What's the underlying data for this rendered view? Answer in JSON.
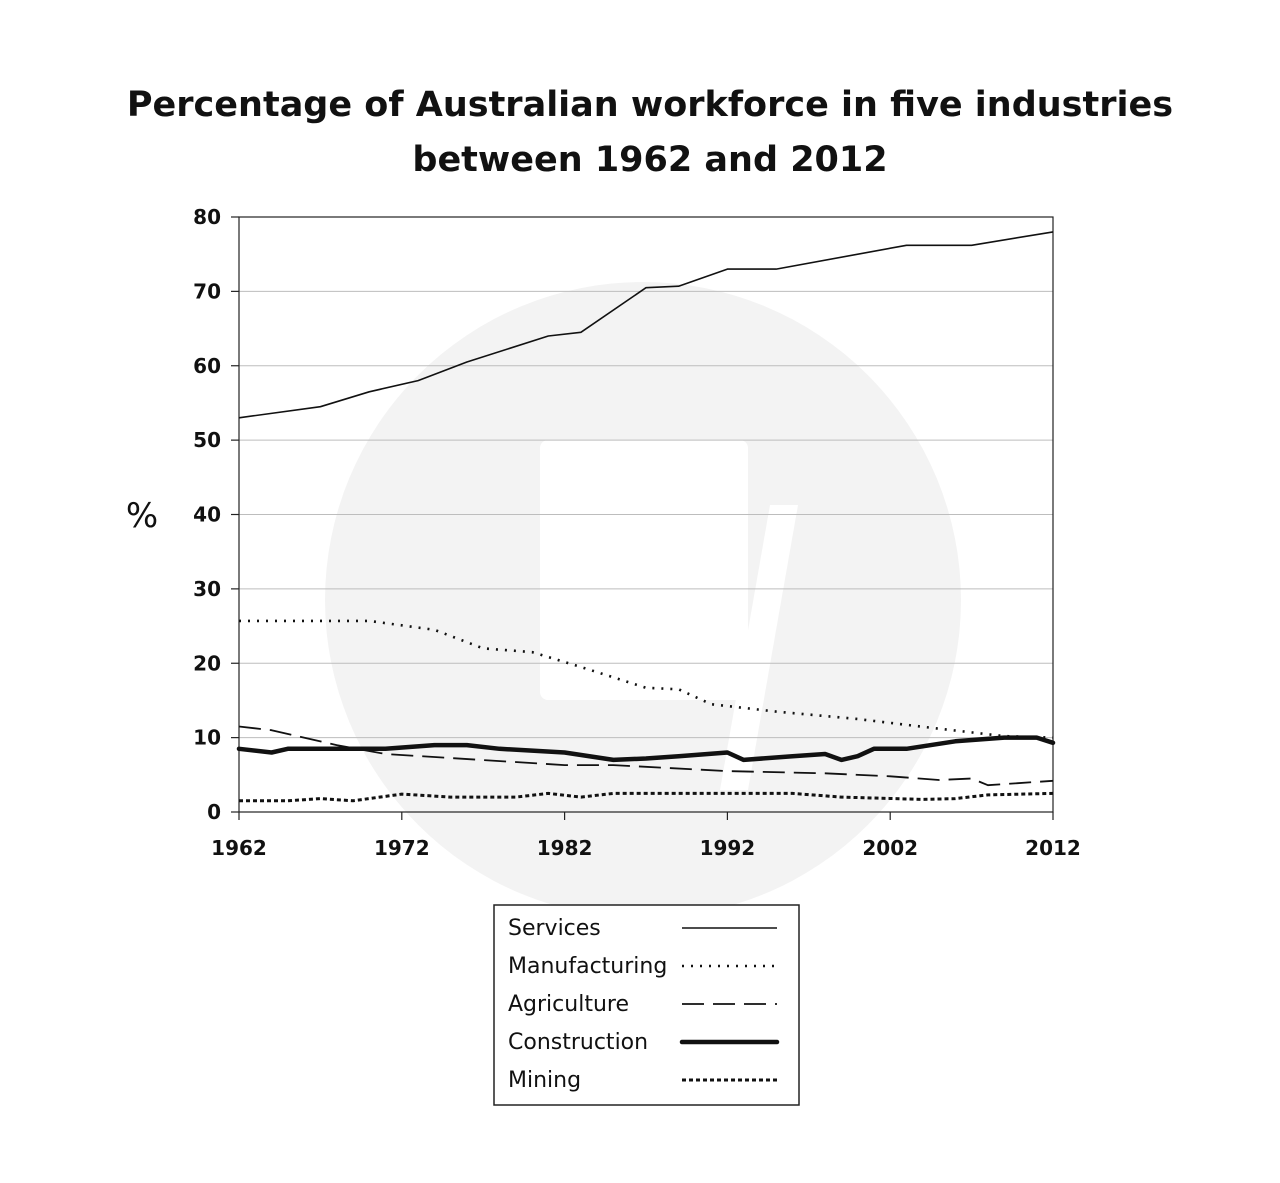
{
  "chart_data": {
    "type": "line",
    "title_lines": [
      "Percentage of Australian workforce in five industries",
      "between 1962 and 2012"
    ],
    "ylabel": "%",
    "xlabel": "",
    "xlim": [
      1962,
      2012
    ],
    "ylim": [
      0,
      80
    ],
    "x_ticks": [
      1962,
      1972,
      1982,
      1992,
      2002,
      2012
    ],
    "y_ticks": [
      0,
      10,
      20,
      30,
      40,
      50,
      60,
      70,
      80
    ],
    "grid": "horizontal",
    "legend_position": "bottom-center",
    "series": [
      {
        "name": "Services",
        "style": "solid",
        "x": [
          1962,
          1967,
          1970,
          1973,
          1976,
          1981,
          1983,
          1987,
          1989,
          1992,
          1995,
          2003,
          2007,
          2012
        ],
        "y": [
          53,
          54.5,
          56.5,
          58,
          60.5,
          64,
          64.5,
          70.5,
          70.7,
          73,
          73,
          76.2,
          76.2,
          78
        ]
      },
      {
        "name": "Manufacturing",
        "style": "dotted",
        "x": [
          1962,
          1970,
          1974,
          1977,
          1980,
          1983,
          1987,
          1989,
          1991,
          1995,
          2000,
          2005,
          2009,
          2012
        ],
        "y": [
          25.7,
          25.7,
          24.5,
          22,
          21.5,
          19.5,
          16.7,
          16.5,
          14.5,
          13.5,
          12.5,
          11.2,
          10.2,
          10
        ]
      },
      {
        "name": "Agriculture",
        "style": "dashed",
        "x": [
          1962,
          1964,
          1968,
          1971,
          1982,
          1985,
          1992,
          1998,
          2002,
          2005,
          2007,
          2008,
          2012
        ],
        "y": [
          11.5,
          11,
          9,
          7.8,
          6.3,
          6.3,
          5.5,
          5.2,
          4.8,
          4.3,
          4.5,
          3.6,
          4.2
        ]
      },
      {
        "name": "Construction",
        "style": "thick",
        "x": [
          1962,
          1964,
          1965,
          1971,
          1974,
          1976,
          1978,
          1982,
          1985,
          1987,
          1989,
          1992,
          1993,
          1996,
          1998,
          1999,
          2000,
          2001,
          2003,
          2006,
          2009,
          2011,
          2012
        ],
        "y": [
          8.5,
          8,
          8.5,
          8.5,
          9,
          9,
          8.5,
          8,
          7,
          7.2,
          7.5,
          8,
          7,
          7.5,
          7.8,
          7,
          7.5,
          8.5,
          8.5,
          9.5,
          10,
          10,
          9.3
        ]
      },
      {
        "name": "Mining",
        "style": "fine-dashed",
        "x": [
          1962,
          1965,
          1967,
          1969,
          1972,
          1975,
          1979,
          1981,
          1983,
          1985,
          1996,
          1999,
          2004,
          2006,
          2008,
          2012
        ],
        "y": [
          1.5,
          1.5,
          1.8,
          1.5,
          2.4,
          2,
          2,
          2.5,
          2,
          2.5,
          2.5,
          2,
          1.7,
          1.8,
          2.3,
          2.5
        ]
      }
    ]
  },
  "colors": {
    "line": "#111111",
    "grid": "#bdbdbd",
    "watermark": "#f3f3f3"
  }
}
